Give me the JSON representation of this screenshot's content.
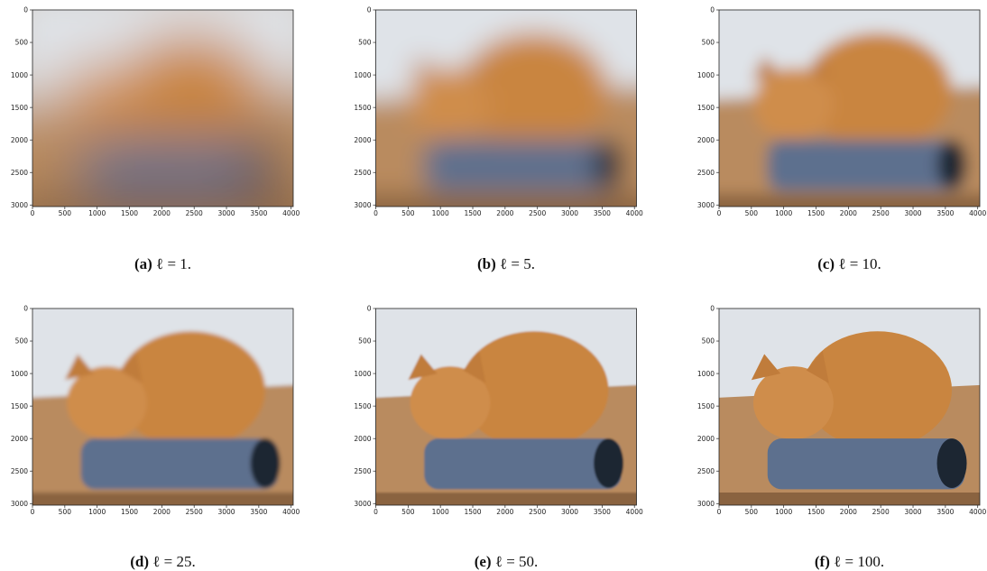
{
  "figure": {
    "panels": [
      {
        "label": "(a)",
        "caption": "ℓ = 1."
      },
      {
        "label": "(b)",
        "caption": "ℓ = 5."
      },
      {
        "label": "(c)",
        "caption": "ℓ = 10."
      },
      {
        "label": "(d)",
        "caption": "ℓ = 25."
      },
      {
        "label": "(e)",
        "caption": "ℓ = 50."
      },
      {
        "label": "(f)",
        "caption": "ℓ = 100."
      }
    ],
    "axes": {
      "xlim": [
        0,
        4032
      ],
      "ylim": [
        0,
        3024
      ],
      "xticks": [
        0,
        500,
        1000,
        1500,
        2000,
        2500,
        3000,
        3500,
        4000
      ],
      "yticks": [
        0,
        500,
        1000,
        1500,
        2000,
        2500,
        3000
      ]
    }
  }
}
